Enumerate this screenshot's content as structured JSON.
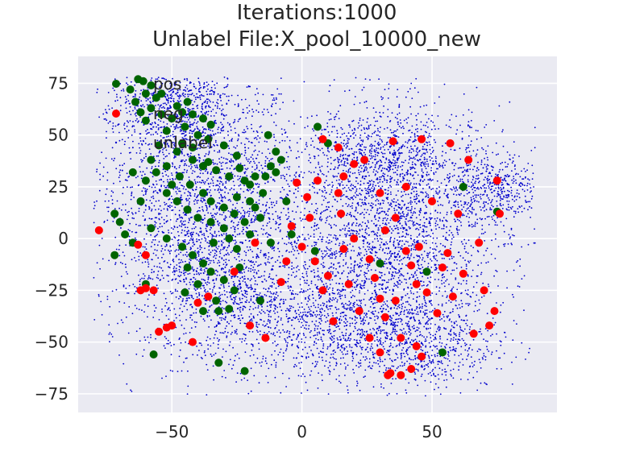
{
  "chart_data": {
    "type": "scatter",
    "title_lines": [
      "Iterations:1000",
      "Unlabel File:X_pool_10000_new"
    ],
    "xlim": [
      -86,
      98
    ],
    "ylim": [
      -84,
      88
    ],
    "x_ticks": [
      -50,
      0,
      50
    ],
    "x_tick_labels": [
      "−50",
      "0",
      "50"
    ],
    "y_ticks": [
      -75,
      -50,
      -25,
      0,
      25,
      50,
      75
    ],
    "y_tick_labels": [
      "−75",
      "−50",
      "−25",
      "0",
      "25",
      "50",
      "75"
    ],
    "grid": true,
    "legend_position": "top-left",
    "background": "#eaeaf2",
    "series": [
      {
        "name": "pos",
        "color": "#006400",
        "points": [
          [
            -63,
            77
          ],
          [
            -61,
            76
          ],
          [
            -58,
            74
          ],
          [
            -60,
            70
          ],
          [
            -56,
            68
          ],
          [
            -64,
            66
          ],
          [
            -58,
            63
          ],
          [
            -54,
            60
          ],
          [
            -50,
            58
          ],
          [
            -46,
            61
          ],
          [
            -42,
            60
          ],
          [
            -38,
            58
          ],
          [
            -35,
            55
          ],
          [
            -60,
            57
          ],
          [
            -52,
            52
          ],
          [
            -45,
            54
          ],
          [
            -40,
            50
          ],
          [
            -36,
            48
          ],
          [
            -30,
            45
          ],
          [
            -25,
            40
          ],
          [
            -55,
            45
          ],
          [
            -48,
            42
          ],
          [
            -42,
            38
          ],
          [
            -38,
            35
          ],
          [
            -33,
            33
          ],
          [
            -28,
            30
          ],
          [
            -22,
            28
          ],
          [
            -18,
            30
          ],
          [
            -12,
            35
          ],
          [
            -10,
            32
          ],
          [
            -58,
            38
          ],
          [
            -52,
            35
          ],
          [
            -47,
            30
          ],
          [
            -43,
            26
          ],
          [
            -38,
            22
          ],
          [
            -35,
            18
          ],
          [
            -30,
            15
          ],
          [
            -25,
            20
          ],
          [
            -20,
            18
          ],
          [
            -15,
            22
          ],
          [
            -65,
            32
          ],
          [
            -60,
            28
          ],
          [
            -52,
            22
          ],
          [
            -48,
            18
          ],
          [
            -44,
            14
          ],
          [
            -40,
            10
          ],
          [
            -35,
            8
          ],
          [
            -30,
            5
          ],
          [
            -28,
            0
          ],
          [
            -25,
            -5
          ],
          [
            -20,
            2
          ],
          [
            -16,
            10
          ],
          [
            -18,
            15
          ],
          [
            -12,
            -2
          ],
          [
            -72,
            12
          ],
          [
            -70,
            8
          ],
          [
            -68,
            2
          ],
          [
            -65,
            -2
          ],
          [
            -72,
            -8
          ],
          [
            -58,
            5
          ],
          [
            -52,
            0
          ],
          [
            -46,
            -4
          ],
          [
            -42,
            -8
          ],
          [
            -38,
            -12
          ],
          [
            -35,
            -16
          ],
          [
            -30,
            -20
          ],
          [
            -26,
            -25
          ],
          [
            -33,
            -30
          ],
          [
            -38,
            -35
          ],
          [
            -32,
            -35
          ],
          [
            -45,
            -26
          ],
          [
            -40,
            -22
          ],
          [
            -32,
            -60
          ],
          [
            -22,
            -64
          ],
          [
            -57,
            -56
          ],
          [
            -16,
            -30
          ],
          [
            -60,
            -22
          ],
          [
            -28,
            -34
          ],
          [
            -24,
            -14
          ],
          [
            -34,
            -2
          ],
          [
            -10,
            42
          ],
          [
            -13,
            50
          ],
          [
            -8,
            38
          ],
          [
            -42,
            44
          ],
          [
            -48,
            64
          ],
          [
            -44,
            66
          ],
          [
            -54,
            70
          ],
          [
            -66,
            72
          ],
          [
            -62,
            61
          ],
          [
            -36,
            37
          ],
          [
            -24,
            34
          ],
          [
            -20,
            26
          ],
          [
            -14,
            30
          ],
          [
            -26,
            12
          ],
          [
            -22,
            8
          ],
          [
            -46,
            46
          ],
          [
            -56,
            32
          ],
          [
            -50,
            26
          ],
          [
            -62,
            18
          ],
          [
            -44,
            -14
          ],
          [
            -6,
            18
          ],
          [
            6,
            54
          ],
          [
            10,
            46
          ],
          [
            5,
            -6
          ],
          [
            30,
            -12
          ],
          [
            48,
            -16
          ],
          [
            54,
            -55
          ],
          [
            62,
            25
          ],
          [
            75,
            13
          ],
          [
            -4,
            2
          ]
        ]
      },
      {
        "name": "neg",
        "color": "#ff0000",
        "points": [
          [
            -78,
            4
          ],
          [
            -63,
            -3
          ],
          [
            -57,
            -25
          ],
          [
            -60,
            -24
          ],
          [
            -62,
            -25
          ],
          [
            -52,
            -43
          ],
          [
            -55,
            -45
          ],
          [
            -50,
            -42
          ],
          [
            -42,
            -50
          ],
          [
            -40,
            -31
          ],
          [
            -36,
            -28
          ],
          [
            -60,
            -8
          ],
          [
            -14,
            -48
          ],
          [
            -8,
            -21
          ],
          [
            -6,
            -11
          ],
          [
            -4,
            6
          ],
          [
            -2,
            27
          ],
          [
            0,
            -4
          ],
          [
            2,
            20
          ],
          [
            3,
            10
          ],
          [
            5,
            -11
          ],
          [
            6,
            28
          ],
          [
            8,
            -25
          ],
          [
            10,
            -18
          ],
          [
            12,
            -40
          ],
          [
            14,
            22
          ],
          [
            15,
            12
          ],
          [
            16,
            -5
          ],
          [
            18,
            -22
          ],
          [
            20,
            0
          ],
          [
            22,
            -35
          ],
          [
            24,
            38
          ],
          [
            26,
            -10
          ],
          [
            28,
            -19
          ],
          [
            30,
            -29
          ],
          [
            32,
            4
          ],
          [
            33,
            -66
          ],
          [
            35,
            47
          ],
          [
            36,
            -30
          ],
          [
            38,
            -48
          ],
          [
            40,
            25
          ],
          [
            42,
            -13
          ],
          [
            44,
            -52
          ],
          [
            45,
            -4
          ],
          [
            46,
            48
          ],
          [
            48,
            -26
          ],
          [
            50,
            18
          ],
          [
            52,
            -36
          ],
          [
            54,
            -14
          ],
          [
            56,
            -7
          ],
          [
            57,
            46
          ],
          [
            58,
            -28
          ],
          [
            60,
            12
          ],
          [
            62,
            -17
          ],
          [
            64,
            38
          ],
          [
            66,
            -46
          ],
          [
            68,
            -2
          ],
          [
            70,
            -25
          ],
          [
            72,
            -42
          ],
          [
            74,
            -35
          ],
          [
            75,
            28
          ],
          [
            76,
            12
          ],
          [
            30,
            -55
          ],
          [
            34,
            -65
          ],
          [
            38,
            -66
          ],
          [
            42,
            -63
          ],
          [
            46,
            -57
          ],
          [
            -20,
            -42
          ],
          [
            -26,
            -16
          ],
          [
            -18,
            -2
          ],
          [
            8,
            48
          ],
          [
            14,
            44
          ],
          [
            20,
            36
          ],
          [
            30,
            22
          ],
          [
            36,
            10
          ],
          [
            40,
            -6
          ],
          [
            44,
            -22
          ],
          [
            26,
            -48
          ],
          [
            32,
            -38
          ],
          [
            16,
            30
          ]
        ]
      },
      {
        "name": "unlabel",
        "color": "#0000cc",
        "points": []
      }
    ]
  }
}
